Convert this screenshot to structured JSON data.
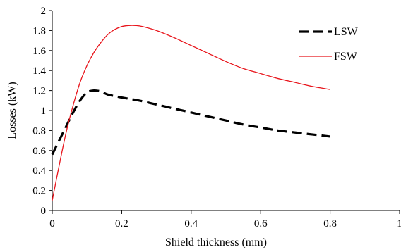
{
  "chart_data": {
    "type": "line",
    "title": "",
    "xlabel": "Shield thickness (mm)",
    "ylabel": "Losses (kW)",
    "xlim": [
      0,
      1
    ],
    "ylim": [
      0,
      2
    ],
    "x_ticks": [
      "0",
      "0.2",
      "0.4",
      "0.6",
      "0.8",
      "1"
    ],
    "y_ticks": [
      "0",
      "0.2",
      "0.4",
      "0.6",
      "0.8",
      "1",
      "1.2",
      "1.4",
      "1.6",
      "1.8",
      "2"
    ],
    "grid": false,
    "legend_position": "top-right",
    "series": [
      {
        "name": "LSW",
        "style": "dashed",
        "color": "#000000",
        "x": [
          0,
          0.02,
          0.04,
          0.06,
          0.08,
          0.1,
          0.12,
          0.14,
          0.16,
          0.2,
          0.25,
          0.3,
          0.35,
          0.4,
          0.45,
          0.5,
          0.55,
          0.6,
          0.65,
          0.7,
          0.75,
          0.8
        ],
        "y": [
          0.56,
          0.7,
          0.84,
          0.98,
          1.1,
          1.18,
          1.2,
          1.19,
          1.16,
          1.13,
          1.1,
          1.06,
          1.02,
          0.98,
          0.94,
          0.9,
          0.86,
          0.83,
          0.8,
          0.78,
          0.76,
          0.74
        ]
      },
      {
        "name": "FSW",
        "style": "solid",
        "color": "#e8141b",
        "x": [
          0,
          0.02,
          0.04,
          0.06,
          0.08,
          0.1,
          0.12,
          0.14,
          0.16,
          0.18,
          0.2,
          0.22,
          0.24,
          0.26,
          0.3,
          0.35,
          0.4,
          0.45,
          0.5,
          0.55,
          0.6,
          0.65,
          0.7,
          0.75,
          0.8
        ],
        "y": [
          0.1,
          0.45,
          0.78,
          1.05,
          1.28,
          1.45,
          1.58,
          1.68,
          1.76,
          1.81,
          1.84,
          1.85,
          1.85,
          1.84,
          1.8,
          1.73,
          1.65,
          1.57,
          1.49,
          1.42,
          1.37,
          1.32,
          1.28,
          1.24,
          1.21
        ]
      }
    ]
  }
}
